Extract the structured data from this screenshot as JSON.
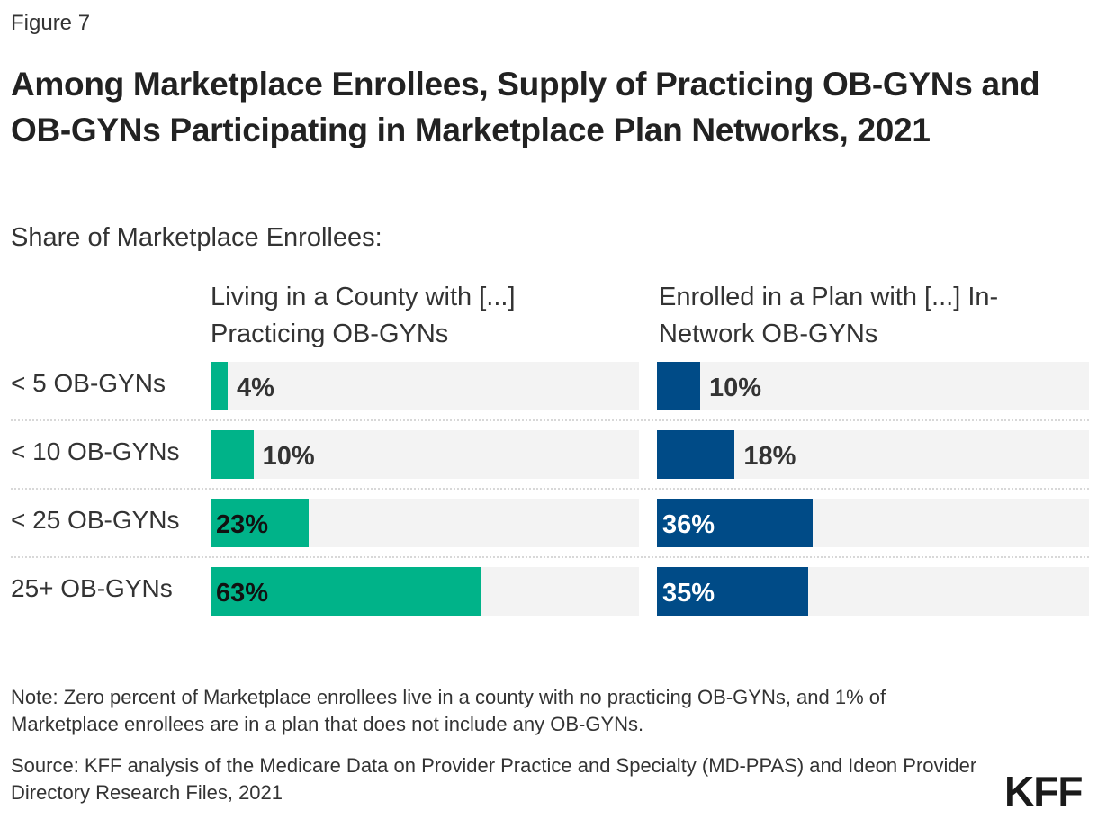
{
  "figure_label": "Figure 7",
  "chart_data": {
    "type": "bar",
    "title": "Among Marketplace Enrollees, Supply of Practicing OB-GYNs and OB-GYNs Participating in Marketplace Plan Networks, 2021",
    "subtitle": "Share of Marketplace Enrollees:",
    "categories": [
      "< 5 OB-GYNs",
      "< 10 OB-GYNs",
      "< 25 OB-GYNs",
      "25+ OB-GYNs"
    ],
    "xlim": [
      0,
      100
    ],
    "grid": false,
    "series": [
      {
        "name": "Living in a County with [...] Practicing OB-GYNs",
        "values": [
          4,
          10,
          23,
          63
        ],
        "labels": [
          "4%",
          "10%",
          "23%",
          "63%"
        ],
        "color": "#00b389"
      },
      {
        "name": "Enrolled in a Plan with [...] In-Network OB-GYNs",
        "values": [
          10,
          18,
          36,
          35
        ],
        "labels": [
          "10%",
          "18%",
          "36%",
          "35%"
        ],
        "color": "#004b87"
      }
    ]
  },
  "note": "Note: Zero percent of Marketplace enrollees live in a county with no practicing OB-GYNs, and 1% of Marketplace enrollees are in a plan that does not include any OB-GYNs.",
  "source": "Source: KFF analysis of the Medicare Data on Provider Practice and Specialty (MD-PPAS) and Ideon Provider Directory Research Files, 2021",
  "logo": "KFF"
}
